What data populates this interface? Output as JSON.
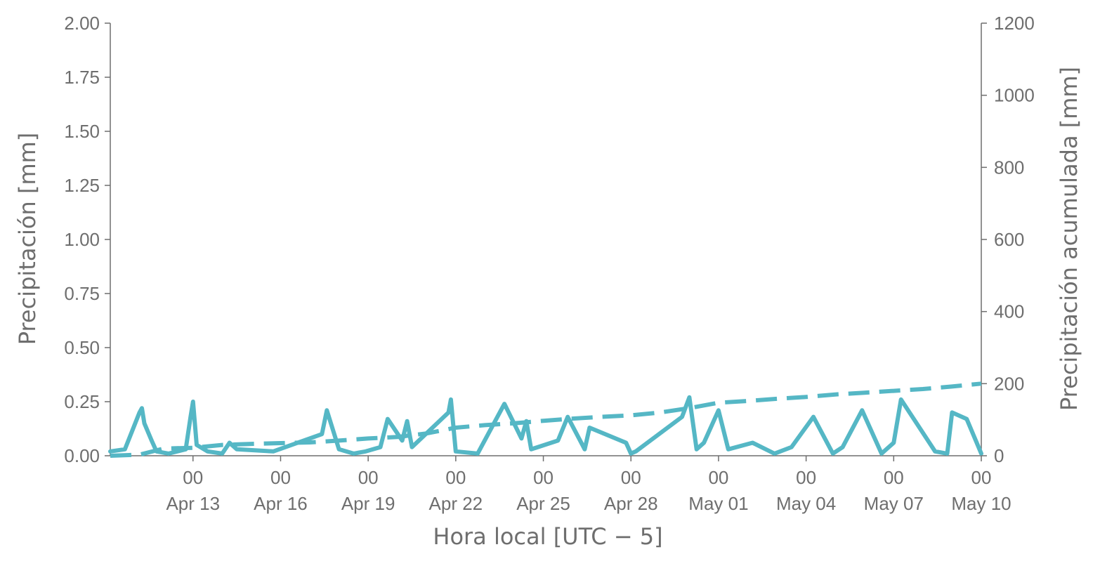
{
  "colors": {
    "series": "#55b7c5",
    "axis": "#6e6e6e"
  },
  "chart_data": {
    "type": "line",
    "xlabel": "Hora local [UTC − 5]",
    "ylabel_left": "Precipitación [mm]",
    "ylabel_right": "Precipitación acumulada [mm]",
    "x_range": [
      "2020-04-10T04:00",
      "2020-05-10T00:00"
    ],
    "ylim_left": [
      0,
      2.0
    ],
    "ylim_right": [
      0,
      1200
    ],
    "grid": false,
    "legend": "none",
    "y_ticks_left": [
      "0.00",
      "0.25",
      "0.50",
      "0.75",
      "1.00",
      "1.25",
      "1.50",
      "1.75",
      "2.00"
    ],
    "y_ticks_right": [
      "0",
      "200",
      "400",
      "600",
      "800",
      "1000",
      "1200"
    ],
    "x_ticks": [
      {
        "date": "2020-04-13",
        "top": "00",
        "bottom": "Apr 13"
      },
      {
        "date": "2020-04-16",
        "top": "00",
        "bottom": "Apr 16"
      },
      {
        "date": "2020-04-19",
        "top": "00",
        "bottom": "Apr 19"
      },
      {
        "date": "2020-04-22",
        "top": "00",
        "bottom": "Apr 22"
      },
      {
        "date": "2020-04-25",
        "top": "00",
        "bottom": "Apr 25"
      },
      {
        "date": "2020-04-28",
        "top": "00",
        "bottom": "Apr 28"
      },
      {
        "date": "2020-05-01",
        "top": "00",
        "bottom": "May 01"
      },
      {
        "date": "2020-05-04",
        "top": "00",
        "bottom": "May 04"
      },
      {
        "date": "2020-05-07",
        "top": "00",
        "bottom": "May 07"
      },
      {
        "date": "2020-05-10",
        "top": "00",
        "bottom": "May 10"
      }
    ],
    "series": [
      {
        "axis": "left",
        "style": "solid",
        "x": [
          "2020-04-10T04:00",
          "2020-04-10T16:00",
          "2020-04-11T04:00",
          "2020-04-11T06:00",
          "2020-04-11T08:00",
          "2020-04-11T14:00",
          "2020-04-11T18:00",
          "2020-04-12T04:00",
          "2020-04-12T18:00",
          "2020-04-12T22:00",
          "2020-04-13T00:00",
          "2020-04-13T03:00",
          "2020-04-13T12:00",
          "2020-04-14T00:00",
          "2020-04-14T06:00",
          "2020-04-14T12:00",
          "2020-04-15T18:00",
          "2020-04-17T10:00",
          "2020-04-17T14:00",
          "2020-04-18T00:00",
          "2020-04-18T12:00",
          "2020-04-18T22:00",
          "2020-04-19T10:00",
          "2020-04-19T16:00",
          "2020-04-20T04:00",
          "2020-04-20T08:00",
          "2020-04-20T12:00",
          "2020-04-21T18:00",
          "2020-04-21T20:00",
          "2020-04-22T00:00",
          "2020-04-22T18:00",
          "2020-04-23T16:00",
          "2020-04-24T06:00",
          "2020-04-24T10:00",
          "2020-04-24T14:00",
          "2020-04-25T12:00",
          "2020-04-25T20:00",
          "2020-04-26T10:00",
          "2020-04-26T14:00",
          "2020-04-27T20:00",
          "2020-04-28T00:00",
          "2020-04-28T04:00",
          "2020-04-29T18:00",
          "2020-04-30T00:00",
          "2020-04-30T06:00",
          "2020-04-30T12:00",
          "2020-05-01T00:00",
          "2020-05-01T08:00",
          "2020-05-02T04:00",
          "2020-05-02T22:00",
          "2020-05-03T12:00",
          "2020-05-04T06:00",
          "2020-05-04T22:00",
          "2020-05-05T06:00",
          "2020-05-05T22:00",
          "2020-05-06T14:00",
          "2020-05-07T00:00",
          "2020-05-07T06:00",
          "2020-05-08T10:00",
          "2020-05-08T20:00",
          "2020-05-09T00:00",
          "2020-05-09T12:00",
          "2020-05-10T00:00"
        ],
        "values": [
          0.02,
          0.03,
          0.2,
          0.22,
          0.15,
          0.07,
          0.02,
          0.01,
          0.03,
          0.18,
          0.25,
          0.05,
          0.02,
          0.01,
          0.06,
          0.03,
          0.02,
          0.1,
          0.21,
          0.03,
          0.01,
          0.02,
          0.04,
          0.17,
          0.07,
          0.16,
          0.04,
          0.2,
          0.26,
          0.02,
          0.01,
          0.24,
          0.08,
          0.16,
          0.03,
          0.07,
          0.18,
          0.03,
          0.13,
          0.06,
          0.01,
          0.02,
          0.18,
          0.27,
          0.03,
          0.06,
          0.21,
          0.03,
          0.06,
          0.01,
          0.04,
          0.18,
          0.01,
          0.04,
          0.21,
          0.01,
          0.06,
          0.26,
          0.02,
          0.01,
          0.2,
          0.17,
          0.01
        ]
      },
      {
        "axis": "right",
        "style": "dashed",
        "x": [
          "2020-04-10T04:00",
          "2020-04-11T04:00",
          "2020-04-12T00:00",
          "2020-04-13T00:00",
          "2020-04-14T00:00",
          "2020-04-15T00:00",
          "2020-04-16T00:00",
          "2020-04-17T00:00",
          "2020-04-18T00:00",
          "2020-04-19T00:00",
          "2020-04-20T00:00",
          "2020-04-21T00:00",
          "2020-04-22T00:00",
          "2020-04-23T00:00",
          "2020-04-24T00:00",
          "2020-04-25T00:00",
          "2020-04-26T00:00",
          "2020-04-27T00:00",
          "2020-04-28T00:00",
          "2020-04-29T00:00",
          "2020-04-30T00:00",
          "2020-05-01T00:00",
          "2020-05-02T00:00",
          "2020-05-03T00:00",
          "2020-05-04T00:00",
          "2020-05-05T00:00",
          "2020-05-06T00:00",
          "2020-05-07T00:00",
          "2020-05-08T00:00",
          "2020-05-09T00:00",
          "2020-05-10T00:00"
        ],
        "values": [
          0,
          3,
          20,
          22,
          30,
          33,
          35,
          37,
          42,
          48,
          52,
          62,
          78,
          85,
          90,
          97,
          103,
          108,
          112,
          120,
          132,
          147,
          152,
          158,
          163,
          170,
          175,
          180,
          185,
          192,
          200
        ]
      }
    ]
  }
}
